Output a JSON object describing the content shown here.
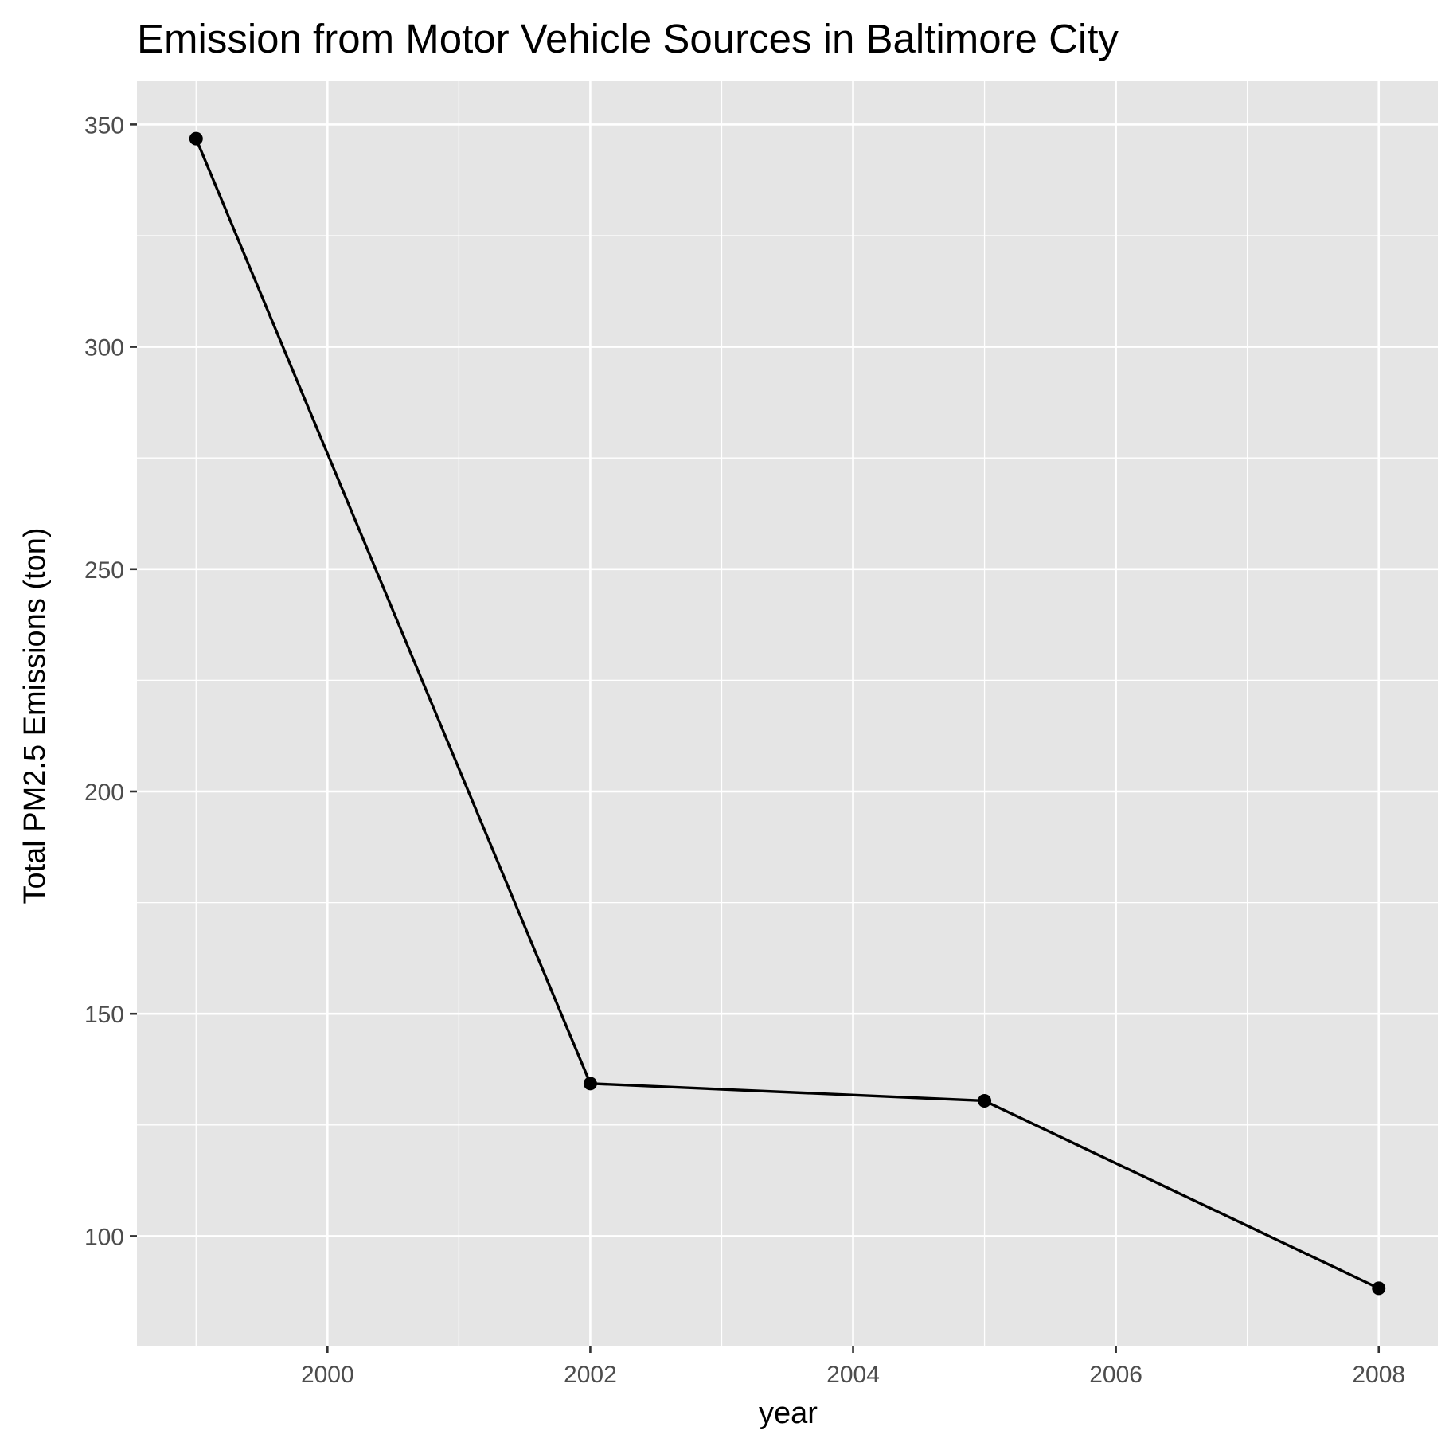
{
  "chart_data": {
    "type": "line",
    "title": "Emission from Motor Vehicle Sources in Baltimore City",
    "xlabel": "year",
    "ylabel": "Total PM2.5 Emissions (ton)",
    "x": [
      1999,
      2002,
      2005,
      2008
    ],
    "series": [
      {
        "values": [
          346.82,
          134.31,
          130.43,
          88.28
        ]
      }
    ],
    "xlim": [
      1998.55,
      2008.45
    ],
    "ylim": [
      75.36,
      359.74
    ],
    "xticks": [
      2000,
      2002,
      2004,
      2006,
      2008
    ],
    "xtick_labels": [
      "2000",
      "2002",
      "2004",
      "2006",
      "2008"
    ],
    "yticks": [
      100,
      150,
      200,
      250,
      300,
      350
    ],
    "ytick_labels": [
      "100",
      "150",
      "200",
      "250",
      "300",
      "350"
    ],
    "x_minor_gridlines": [
      1999,
      2001,
      2003,
      2005,
      2007
    ],
    "y_minor_gridlines": [
      125,
      175,
      225,
      275,
      325
    ],
    "grid": true,
    "legend": "none",
    "colors": {
      "panel_background": "#e5e5e5",
      "grid_line": "#ffffff",
      "series_line": "#000000",
      "tick_mark": "#333333",
      "tick_label": "#4d4d4d"
    }
  }
}
